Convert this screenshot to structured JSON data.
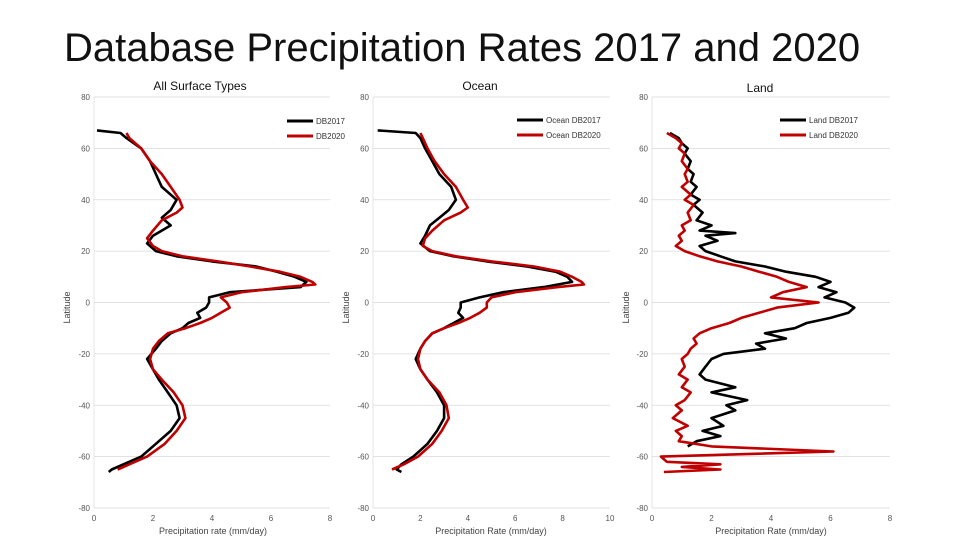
{
  "slide": {
    "title": "Database Precipitation Rates 2017 and 2020"
  },
  "chart_data": [
    {
      "type": "line",
      "title": "All Surface Types",
      "xlabel": "Precipitation rate (mm/day)",
      "ylabel": "Latitude",
      "xlim": [
        0,
        8
      ],
      "ylim": [
        -80,
        80
      ],
      "xticks": [
        0,
        2,
        4,
        6,
        8
      ],
      "yticks": [
        80,
        60,
        40,
        20,
        0,
        -20,
        -40,
        -60,
        -80
      ],
      "legend": "top-right",
      "series": [
        {
          "name": "DB2017",
          "color": "#000000",
          "lat": [
            67,
            66,
            64,
            60,
            55,
            50,
            45,
            40,
            36,
            33,
            30,
            26,
            23,
            20,
            18,
            16,
            14,
            12,
            10,
            8,
            6,
            4,
            2,
            0,
            -2,
            -4,
            -6,
            -8,
            -10,
            -12,
            -15,
            -18,
            -22,
            -26,
            -30,
            -35,
            -40,
            -45,
            -50,
            -55,
            -60,
            -63,
            -65,
            -66
          ],
          "rate": [
            0.1,
            0.9,
            1.1,
            1.6,
            1.9,
            2.1,
            2.3,
            2.8,
            2.6,
            2.3,
            2.6,
            2.0,
            1.8,
            2.1,
            2.8,
            4.0,
            5.5,
            6.2,
            6.8,
            7.2,
            7.0,
            4.6,
            3.9,
            3.9,
            3.8,
            3.5,
            3.6,
            3.2,
            3.0,
            2.6,
            2.3,
            2.1,
            1.8,
            2.0,
            2.2,
            2.5,
            2.8,
            2.9,
            2.6,
            2.1,
            1.6,
            1.0,
            0.6,
            0.5
          ]
        },
        {
          "name": "DB2020",
          "color": "#c00000",
          "lat": [
            66,
            64,
            60,
            55,
            50,
            45,
            40,
            37,
            35,
            32,
            28,
            25,
            22,
            20,
            18,
            16,
            14,
            12,
            10,
            8,
            7,
            6,
            4,
            2,
            0,
            -2,
            -4,
            -6,
            -8,
            -10,
            -12,
            -15,
            -18,
            -22,
            -26,
            -30,
            -35,
            -40,
            -45,
            -50,
            -55,
            -60,
            -63,
            -65
          ],
          "rate": [
            1.1,
            1.2,
            1.6,
            1.9,
            2.3,
            2.6,
            2.9,
            3.0,
            2.8,
            2.3,
            2.0,
            1.8,
            2.0,
            2.3,
            3.0,
            4.2,
            5.3,
            6.3,
            7.0,
            7.4,
            7.5,
            6.5,
            5.0,
            4.3,
            4.5,
            4.6,
            4.3,
            4.0,
            3.6,
            3.1,
            2.5,
            2.2,
            2.0,
            1.9,
            2.0,
            2.3,
            2.7,
            3.0,
            3.1,
            2.8,
            2.4,
            1.8,
            1.2,
            0.8
          ]
        }
      ]
    },
    {
      "type": "line",
      "title": "Ocean",
      "xlabel": "Precipitation Rate (mm/day)",
      "ylabel": "Latitude",
      "xlim": [
        0,
        10
      ],
      "ylim": [
        -80,
        80
      ],
      "xticks": [
        0,
        2,
        4,
        6,
        8,
        10
      ],
      "yticks": [
        80,
        60,
        40,
        20,
        0,
        -20,
        -40,
        -60,
        -80
      ],
      "legend": "top-right",
      "series": [
        {
          "name": "Ocean DB2017",
          "color": "#000000",
          "lat": [
            67,
            66,
            64,
            60,
            55,
            50,
            45,
            40,
            36,
            33,
            30,
            26,
            23,
            20,
            18,
            16,
            14,
            12,
            10,
            8,
            6,
            4,
            2,
            0,
            -2,
            -4,
            -6,
            -8,
            -10,
            -12,
            -15,
            -18,
            -22,
            -26,
            -30,
            -35,
            -40,
            -45,
            -50,
            -55,
            -60,
            -63,
            -65,
            -66
          ],
          "rate": [
            0.2,
            1.8,
            2.0,
            2.2,
            2.5,
            2.8,
            3.3,
            3.5,
            3.2,
            2.8,
            2.4,
            2.2,
            2.0,
            2.4,
            3.4,
            4.8,
            6.5,
            7.7,
            8.2,
            8.4,
            7.2,
            5.5,
            4.5,
            3.7,
            3.7,
            3.6,
            3.8,
            3.4,
            3.0,
            2.5,
            2.2,
            2.0,
            1.8,
            2.0,
            2.3,
            2.7,
            3.0,
            3.0,
            2.7,
            2.3,
            1.7,
            1.2,
            1.0,
            1.2
          ]
        },
        {
          "name": "Ocean DB2020",
          "color": "#c00000",
          "lat": [
            66,
            64,
            60,
            55,
            50,
            45,
            40,
            37,
            35,
            32,
            28,
            25,
            22,
            20,
            18,
            16,
            14,
            12,
            10,
            8,
            7,
            6,
            4,
            2,
            0,
            -2,
            -4,
            -6,
            -8,
            -10,
            -12,
            -15,
            -18,
            -22,
            -26,
            -30,
            -35,
            -40,
            -45,
            -50,
            -55,
            -60,
            -63,
            -65
          ],
          "rate": [
            2.0,
            2.1,
            2.3,
            2.6,
            3.0,
            3.5,
            3.8,
            4.0,
            3.7,
            3.0,
            2.5,
            2.2,
            2.1,
            2.5,
            3.5,
            5.0,
            6.8,
            7.9,
            8.4,
            8.8,
            8.9,
            7.8,
            6.0,
            5.0,
            4.8,
            4.8,
            4.5,
            4.1,
            3.6,
            3.0,
            2.5,
            2.2,
            2.0,
            1.9,
            2.0,
            2.3,
            2.8,
            3.1,
            3.2,
            2.9,
            2.5,
            1.9,
            1.3,
            0.8
          ]
        }
      ]
    },
    {
      "type": "line",
      "title": "Land",
      "xlabel": "Precipitation Rate (mm/day)",
      "ylabel": "Latitude",
      "xlim": [
        0,
        8
      ],
      "ylim": [
        -80,
        80
      ],
      "xticks": [
        0,
        2,
        4,
        6,
        8
      ],
      "yticks": [
        80,
        60,
        40,
        20,
        0,
        -20,
        -40,
        -60,
        -80
      ],
      "legend": "top-right",
      "series": [
        {
          "name": "Land DB2017",
          "color": "#000000",
          "lat": [
            66,
            64,
            62,
            60,
            58,
            55,
            52,
            50,
            47,
            45,
            42,
            40,
            38,
            35,
            32,
            30,
            28,
            27,
            26,
            24,
            22,
            20,
            18,
            16,
            14,
            12,
            10,
            8,
            6,
            4,
            2,
            0,
            -2,
            -4,
            -6,
            -8,
            -10,
            -12,
            -14,
            -16,
            -18,
            -20,
            -22,
            -25,
            -28,
            -30,
            -33,
            -35,
            -38,
            -40,
            -42,
            -45,
            -48,
            -50,
            -52,
            -54,
            -56
          ],
          "rate": [
            0.6,
            0.9,
            1.0,
            1.2,
            1.1,
            1.3,
            1.2,
            1.4,
            1.3,
            1.5,
            1.3,
            1.6,
            1.4,
            1.7,
            1.5,
            2.0,
            1.6,
            2.8,
            1.8,
            2.2,
            1.6,
            1.8,
            2.3,
            2.8,
            3.8,
            4.5,
            5.5,
            6.0,
            5.6,
            6.2,
            5.8,
            6.5,
            6.8,
            6.6,
            6.0,
            5.2,
            4.8,
            3.8,
            4.5,
            3.5,
            3.8,
            2.4,
            2.0,
            1.8,
            1.6,
            1.8,
            2.8,
            2.0,
            3.2,
            2.5,
            2.8,
            2.0,
            2.4,
            1.7,
            2.3,
            1.5,
            1.2
          ]
        },
        {
          "name": "Land DB2020",
          "color": "#c00000",
          "lat": [
            66,
            64,
            62,
            60,
            58,
            55,
            52,
            50,
            47,
            45,
            42,
            40,
            38,
            35,
            32,
            30,
            28,
            26,
            24,
            22,
            20,
            18,
            16,
            14,
            12,
            10,
            8,
            6,
            4,
            2,
            0,
            -2,
            -4,
            -6,
            -8,
            -10,
            -12,
            -14,
            -16,
            -18,
            -20,
            -22,
            -25,
            -28,
            -30,
            -33,
            -35,
            -38,
            -40,
            -42,
            -45,
            -48,
            -50,
            -52,
            -54,
            -56,
            -58,
            -60,
            -62,
            -63,
            -64,
            -65,
            -66
          ],
          "rate": [
            0.5,
            0.8,
            1.0,
            0.9,
            1.1,
            1.0,
            1.2,
            1.1,
            1.2,
            1.0,
            1.3,
            1.1,
            1.4,
            1.2,
            1.3,
            1.0,
            1.1,
            0.9,
            1.0,
            0.8,
            1.1,
            1.6,
            2.2,
            3.0,
            3.6,
            4.2,
            4.6,
            5.2,
            4.4,
            4.0,
            5.6,
            4.2,
            3.6,
            3.0,
            2.6,
            2.0,
            1.6,
            1.4,
            1.5,
            1.3,
            1.2,
            1.0,
            1.1,
            0.9,
            1.2,
            1.0,
            1.3,
            1.1,
            0.8,
            1.0,
            0.7,
            1.2,
            0.8,
            1.0,
            0.9,
            2.0,
            6.1,
            0.3,
            0.5,
            2.3,
            1.0,
            2.3,
            0.4
          ]
        }
      ]
    }
  ]
}
